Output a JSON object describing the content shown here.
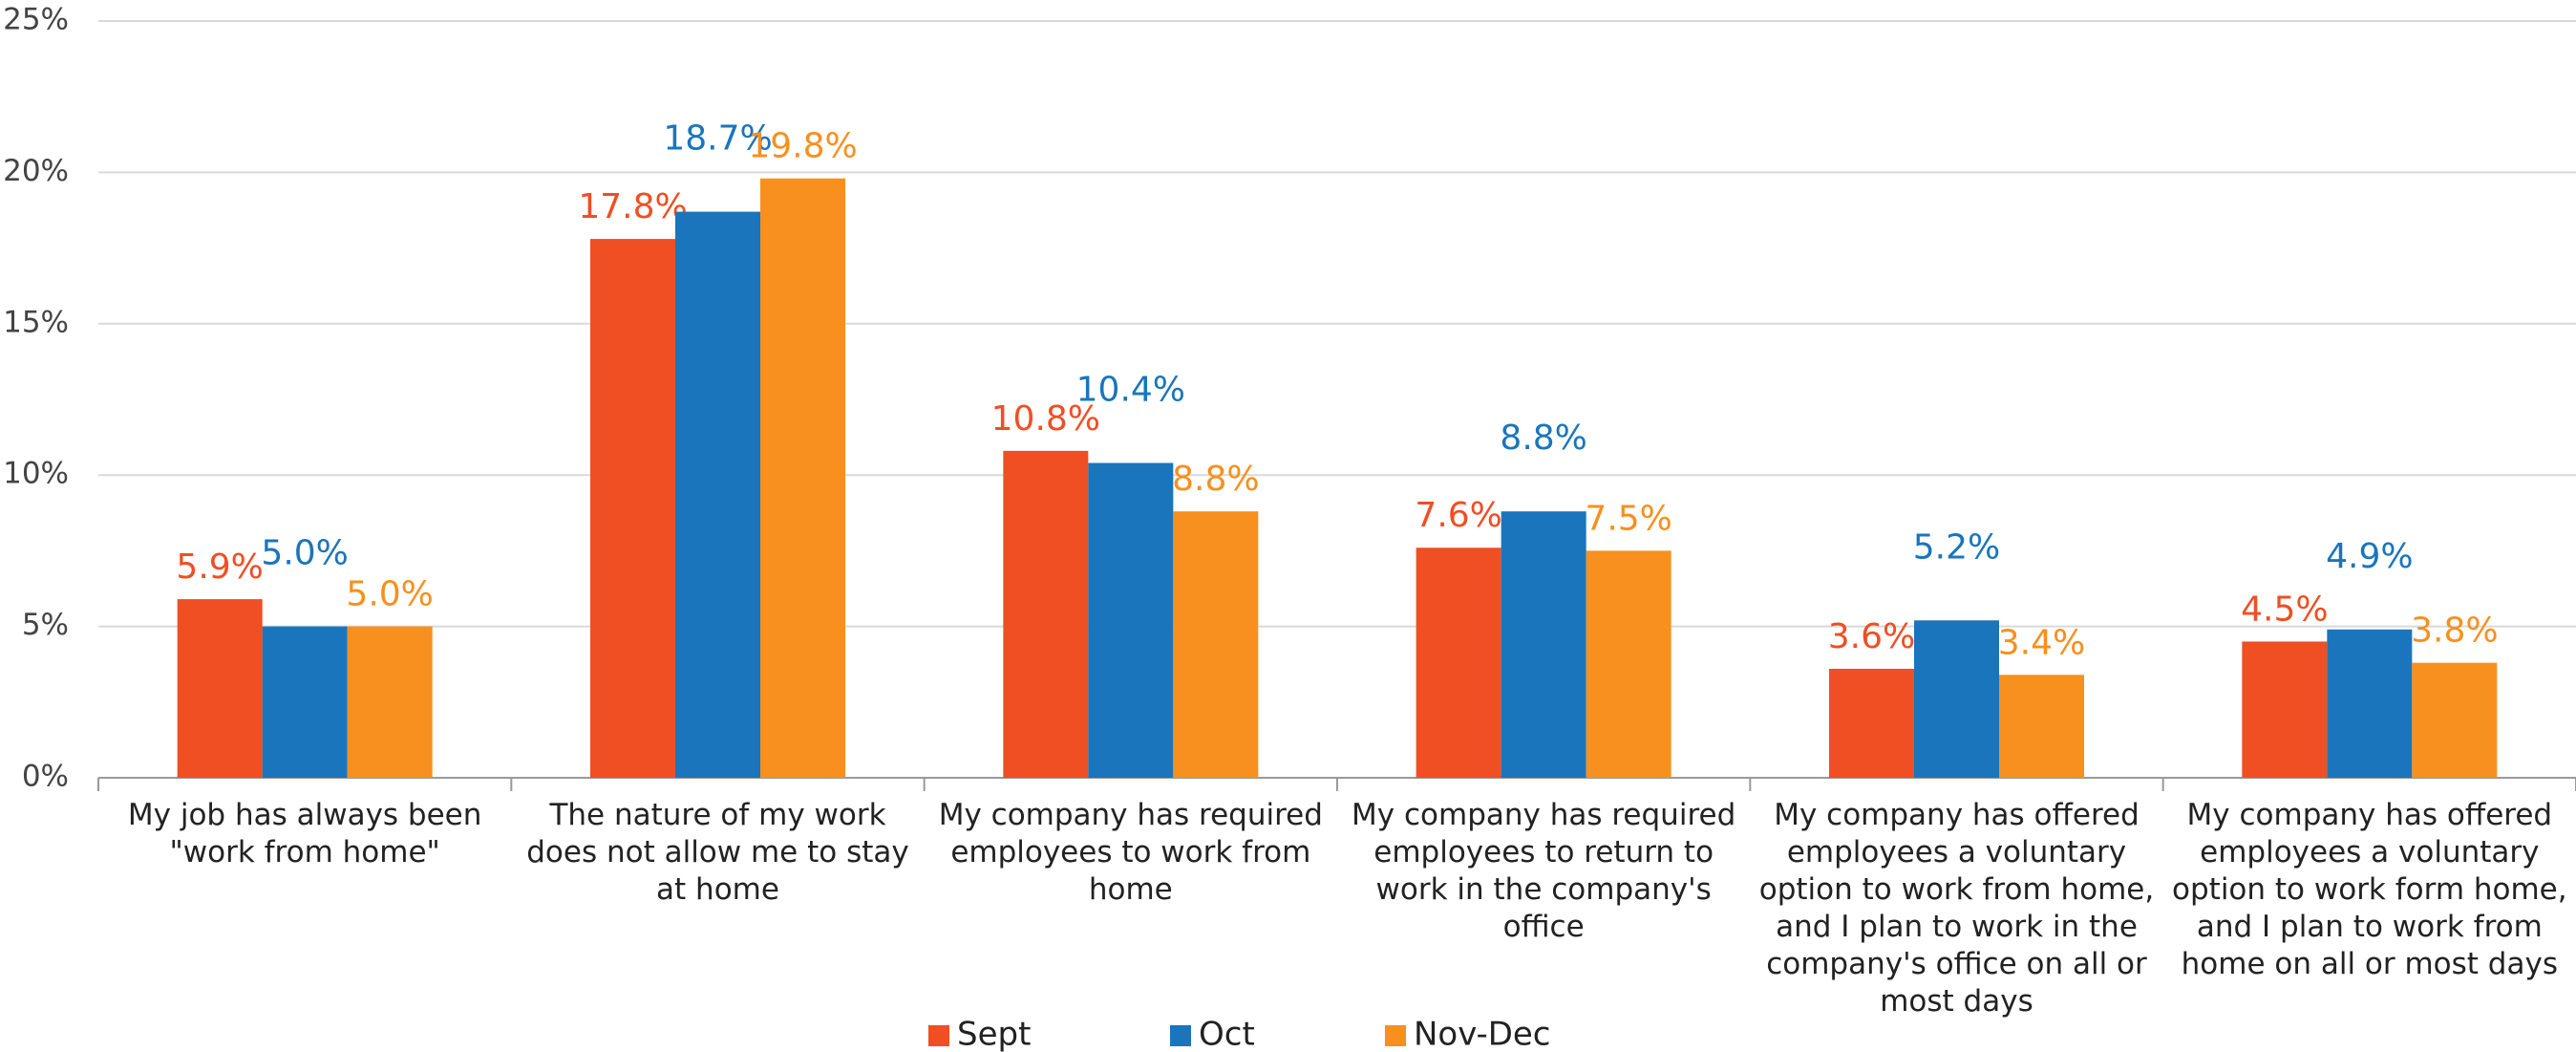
{
  "chart_data": {
    "type": "bar",
    "categories": [
      "My job has always been \"work from home\"",
      "The nature of my work does not allow me to stay at home",
      "My company has required employees to work from home",
      "My company has required employees to return to work in the company's office",
      "My company has offered employees a voluntary option to work from home, and I plan to work in the company's office on all or most days",
      "My company has offered employees a voluntary option to work form home, and I plan to work from home on all or most days"
    ],
    "series": [
      {
        "name": "Sept",
        "color": "#f04e23",
        "values": [
          5.9,
          17.8,
          10.8,
          7.6,
          3.6,
          4.5
        ],
        "value_labels": [
          "5.9%",
          "17.8%",
          "10.8%",
          "7.6%",
          "3.6%",
          "4.5%"
        ]
      },
      {
        "name": "Oct",
        "color": "#1a75bc",
        "values": [
          5.0,
          18.7,
          10.4,
          8.8,
          5.2,
          4.9
        ],
        "value_labels": [
          "5.0%",
          "18.7%",
          "10.4%",
          "8.8%",
          "5.2%",
          "4.9%"
        ]
      },
      {
        "name": "Nov-Dec",
        "color": "#f7901e",
        "values": [
          5.0,
          19.8,
          8.8,
          7.5,
          3.4,
          3.8
        ],
        "value_labels": [
          "5.0%",
          "19.8%",
          "8.8%",
          "7.5%",
          "3.4%",
          "3.8%"
        ]
      }
    ],
    "ylim": [
      0,
      25
    ],
    "yticks": [
      {
        "value": 0,
        "label": "0%"
      },
      {
        "value": 5,
        "label": "5%"
      },
      {
        "value": 10,
        "label": "10%"
      },
      {
        "value": 15,
        "label": "15%"
      },
      {
        "value": 20,
        "label": "20%"
      },
      {
        "value": 25,
        "label": "25%"
      }
    ],
    "grid": true,
    "legend": "bottom"
  }
}
